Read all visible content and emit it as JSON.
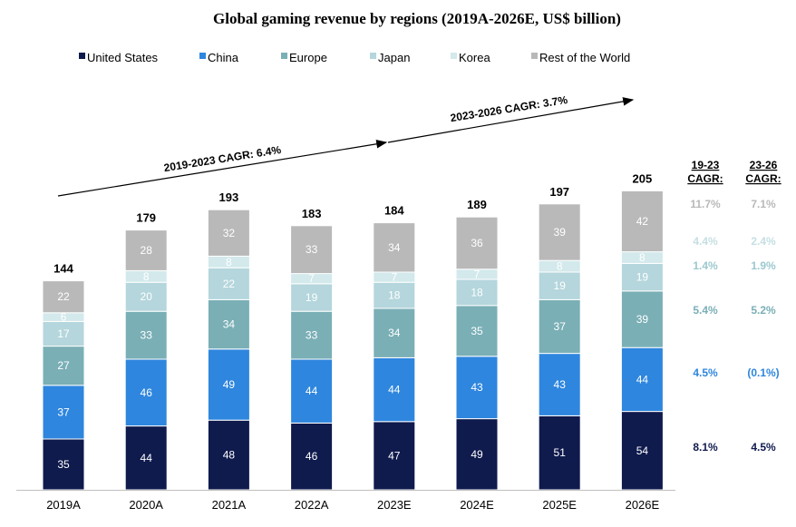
{
  "chart_data": {
    "type": "bar",
    "stacked": true,
    "title": "Global gaming revenue by regions (2019A-2026E, US$ billion)",
    "categories": [
      "2019A",
      "2020A",
      "2021A",
      "2022A",
      "2023E",
      "2024E",
      "2025E",
      "2026E"
    ],
    "series": [
      {
        "name": "United States",
        "color": "#0f1a4d",
        "label_color": "#ffffff",
        "values": [
          35,
          44,
          48,
          46,
          47,
          49,
          51,
          54
        ]
      },
      {
        "name": "China",
        "color": "#2e86de",
        "label_color": "#ffffff",
        "values": [
          37,
          46,
          49,
          44,
          44,
          43,
          43,
          44
        ]
      },
      {
        "name": "Europe",
        "color": "#7aafb6",
        "label_color": "#ffffff",
        "values": [
          27,
          33,
          34,
          33,
          34,
          35,
          37,
          39
        ]
      },
      {
        "name": "Japan",
        "color": "#b4d6dc",
        "label_color": "#ffffff",
        "values": [
          17,
          20,
          22,
          19,
          18,
          18,
          19,
          19
        ]
      },
      {
        "name": "Korea",
        "color": "#d3e9ec",
        "label_color": "#ffffff",
        "values": [
          6,
          8,
          8,
          7,
          7,
          7,
          8,
          8
        ]
      },
      {
        "name": "Rest of the World",
        "color": "#b9b9b9",
        "label_color": "#ffffff",
        "values": [
          22,
          28,
          32,
          33,
          34,
          36,
          39,
          42
        ]
      }
    ],
    "totals": [
      144,
      179,
      193,
      183,
      184,
      189,
      197,
      205
    ],
    "annotations": {
      "cagr_2019_2023": "2019-2023  CAGR:  6.4%",
      "cagr_2023_2026": "2023-2026  CAGR:  3.7%"
    },
    "cagr_table": {
      "headers": [
        [
          "19-23",
          "CAGR:"
        ],
        [
          "23-26",
          "CAGR:"
        ]
      ],
      "rows": [
        {
          "series": "Rest of the World",
          "color": "#b9b9b9",
          "values": [
            "11.7%",
            "7.1%"
          ]
        },
        {
          "series": "Korea",
          "color": "#c5dfe3",
          "values": [
            "4.4%",
            "2.4%"
          ]
        },
        {
          "series": "Japan",
          "color": "#9cc8cf",
          "values": [
            "1.4%",
            "1.9%"
          ]
        },
        {
          "series": "Europe",
          "color": "#7aafb6",
          "values": [
            "5.4%",
            "5.2%"
          ]
        },
        {
          "series": "China",
          "color": "#2e86de",
          "values": [
            "4.5%",
            "(0.1%)"
          ]
        },
        {
          "series": "United States",
          "color": "#0f1a4d",
          "values": [
            "8.1%",
            "4.5%"
          ]
        }
      ]
    },
    "ylim": [
      0,
      205
    ]
  }
}
